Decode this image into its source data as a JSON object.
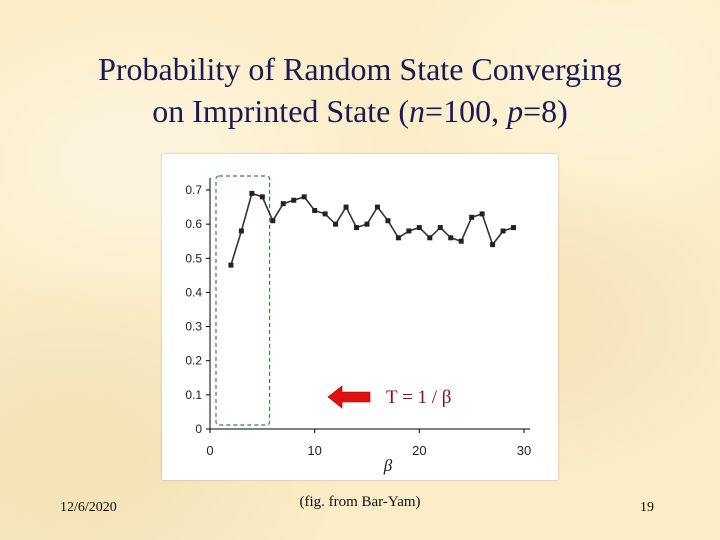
{
  "slide": {
    "title_line1": "Probability of Random State Converging",
    "title_line2_prefix": "on Imprinted State (",
    "title_n_symbol": "n",
    "title_n_value": "=100, ",
    "title_p_symbol": "p",
    "title_p_value": "=8)",
    "date": "12/6/2020",
    "caption": "(fig. from Bar-Yam)",
    "page_number": "19"
  },
  "colors": {
    "line": "#333333",
    "marker": "#222222",
    "highlight_box": "#2e8b3a",
    "arrow": "#e01010"
  },
  "annotation": {
    "label": "T = 1 / β",
    "arrow_direction": "left"
  },
  "chart_data": {
    "type": "line",
    "title": "",
    "xlabel": "β",
    "ylabel": "",
    "xlim": [
      0,
      30
    ],
    "ylim": [
      0,
      0.7
    ],
    "xticks": [
      0,
      10,
      20,
      30
    ],
    "yticks": [
      0,
      0.1,
      0.2,
      0.3,
      0.4,
      0.5,
      0.6,
      0.7
    ],
    "x": [
      2,
      3,
      4,
      5,
      6,
      7,
      8,
      9,
      10,
      11,
      12,
      13,
      14,
      15,
      16,
      17,
      18,
      19,
      20,
      21,
      22,
      23,
      24,
      25,
      26,
      27,
      28,
      29
    ],
    "values": [
      0.48,
      0.58,
      0.69,
      0.68,
      0.61,
      0.66,
      0.67,
      0.68,
      0.64,
      0.63,
      0.6,
      0.65,
      0.59,
      0.6,
      0.65,
      0.61,
      0.56,
      0.58,
      0.59,
      0.56,
      0.59,
      0.56,
      0.55,
      0.62,
      0.63,
      0.54,
      0.58,
      0.59
    ],
    "highlight_x_range": [
      0,
      5.5
    ],
    "grid": false
  }
}
